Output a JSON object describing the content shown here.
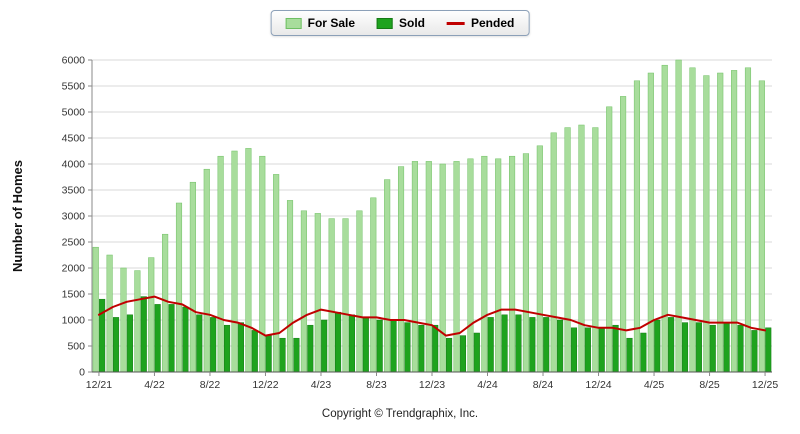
{
  "legend": {
    "for_sale": "For Sale",
    "sold": "Sold",
    "pended": "Pended"
  },
  "ylabel": "Number of Homes",
  "footer": "Copyright © Trendgraphix, Inc.",
  "colors": {
    "for_sale": "#a8dd9c",
    "for_sale_border": "#6ebf63",
    "sold": "#1ea31e",
    "sold_border": "#157a15",
    "pended": "#c00000",
    "grid": "#d9d9d9",
    "axis": "#8a8a8a",
    "x_axis": "#555555",
    "text": "#333333"
  },
  "chart_data": {
    "type": "bar",
    "note": "grouped monthly bars (For Sale, Sold) with Pended line overlay",
    "x": [
      "12/21",
      "1/22",
      "2/22",
      "3/22",
      "4/22",
      "5/22",
      "6/22",
      "7/22",
      "8/22",
      "9/22",
      "10/22",
      "11/22",
      "12/22",
      "1/23",
      "2/23",
      "3/23",
      "4/23",
      "5/23",
      "6/23",
      "7/23",
      "8/23",
      "9/23",
      "10/23",
      "11/23",
      "12/23",
      "1/24",
      "2/24",
      "3/24",
      "4/24",
      "5/24",
      "6/24",
      "7/24",
      "8/24",
      "9/24",
      "10/24",
      "11/24",
      "12/24",
      "1/25",
      "2/25",
      "3/25",
      "4/25",
      "5/25",
      "6/25",
      "7/25",
      "8/25",
      "9/25",
      "10/25",
      "11/25",
      "12/25"
    ],
    "x_tick_labels": [
      "12/21",
      "4/22",
      "8/22",
      "12/22",
      "4/23",
      "8/23",
      "12/23",
      "4/24",
      "8/24",
      "12/24",
      "4/25",
      "8/25",
      "12/25"
    ],
    "series": [
      {
        "name": "For Sale",
        "type": "bar",
        "values": [
          2400,
          2250,
          2000,
          1950,
          2200,
          2650,
          3250,
          3650,
          3900,
          4150,
          4250,
          4300,
          4150,
          3800,
          3300,
          3100,
          3050,
          2950,
          2950,
          3100,
          3350,
          3700,
          3950,
          4050,
          4050,
          4000,
          4050,
          4100,
          4150,
          4100,
          4150,
          4200,
          4350,
          4600,
          4700,
          4750,
          4700,
          5100,
          5300,
          5600,
          5750,
          5900,
          6000,
          5850,
          5700,
          5750,
          5800,
          5850,
          5600
        ]
      },
      {
        "name": "Sold",
        "type": "bar",
        "values": [
          1400,
          1050,
          1100,
          1450,
          1300,
          1300,
          1250,
          1100,
          1050,
          900,
          950,
          800,
          700,
          650,
          650,
          900,
          1000,
          1150,
          1100,
          1050,
          1000,
          1000,
          950,
          900,
          900,
          650,
          700,
          750,
          1050,
          1100,
          1100,
          1050,
          1050,
          1000,
          850,
          850,
          850,
          900,
          650,
          750,
          1000,
          1050,
          950,
          950,
          900,
          950,
          900,
          800,
          850
        ]
      },
      {
        "name": "Pended",
        "type": "line",
        "values": [
          1100,
          1250,
          1350,
          1400,
          1450,
          1350,
          1300,
          1150,
          1100,
          1000,
          950,
          850,
          700,
          750,
          950,
          1100,
          1200,
          1150,
          1100,
          1050,
          1050,
          1000,
          1000,
          950,
          900,
          700,
          750,
          950,
          1100,
          1200,
          1200,
          1150,
          1100,
          1050,
          1000,
          900,
          850,
          850,
          800,
          850,
          1000,
          1100,
          1050,
          1000,
          950,
          950,
          950,
          850,
          800
        ]
      }
    ],
    "ylim": [
      0,
      6000
    ],
    "ytick_step": 500,
    "grid": true,
    "legend_position": "top-center",
    "title": "",
    "xlabel": "",
    "ylabel": "Number of Homes"
  }
}
